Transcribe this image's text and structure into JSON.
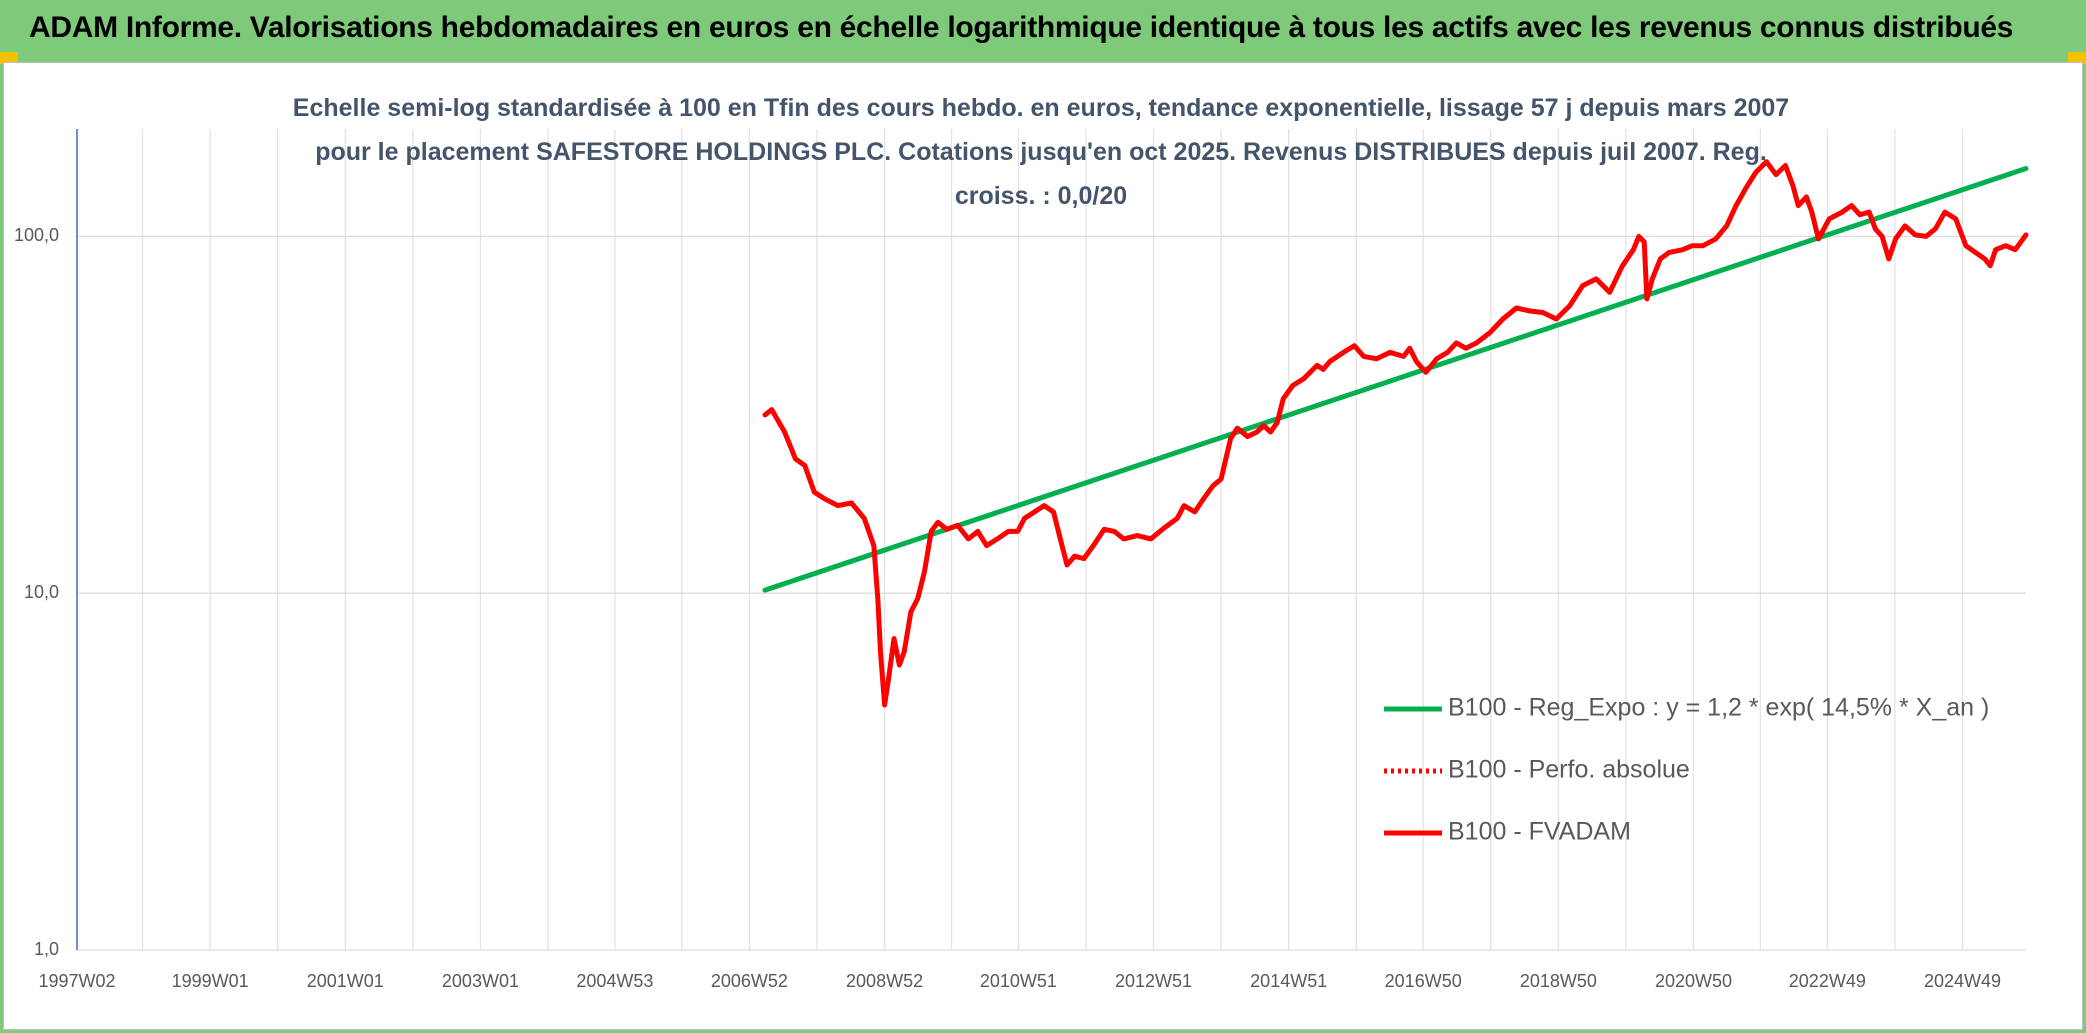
{
  "header": {
    "title": "ADAM Informe. Valorisations hebdomadaires en euros en échelle logarithmique identique à tous les actifs avec les revenus connus distribués"
  },
  "chart_data": {
    "type": "line",
    "title": "Echelle semi-log standardisée à 100 en Tfin des cours hebdo. en euros, tendance exponentielle, lissage 57 j depuis mars 2007 pour le placement SAFESTORE HOLDINGS PLC. Cotations jusqu'en oct 2025. Revenus DISTRIBUES depuis juil 2007. Reg. croiss. : 0,0/20",
    "ylog": true,
    "ylim": [
      1,
      200
    ],
    "yticks": [
      {
        "value": 1,
        "label": "1,0"
      },
      {
        "value": 10,
        "label": "10,0"
      },
      {
        "value": 100,
        "label": "100,0"
      }
    ],
    "xlim": [
      1997.03,
      2025.87
    ],
    "xticks": [
      {
        "value": 1997.03,
        "label": "1997W02"
      },
      {
        "value": 1999.0,
        "label": "1999W01"
      },
      {
        "value": 2001.0,
        "label": "2001W01"
      },
      {
        "value": 2003.0,
        "label": "2003W01"
      },
      {
        "value": 2004.99,
        "label": "2004W53"
      },
      {
        "value": 2006.98,
        "label": "2006W52"
      },
      {
        "value": 2008.98,
        "label": "2008W52"
      },
      {
        "value": 2010.96,
        "label": "2010W51"
      },
      {
        "value": 2012.96,
        "label": "2012W51"
      },
      {
        "value": 2014.96,
        "label": "2014W51"
      },
      {
        "value": 2016.95,
        "label": "2016W50"
      },
      {
        "value": 2018.95,
        "label": "2018W50"
      },
      {
        "value": 2020.95,
        "label": "2020W50"
      },
      {
        "value": 2022.93,
        "label": "2022W49"
      },
      {
        "value": 2024.93,
        "label": "2024W49"
      }
    ],
    "xminorticks": [
      1998.0,
      2000.0,
      2002.0,
      2004.0,
      2005.98,
      2007.98,
      2009.97,
      2011.96,
      2013.96,
      2015.96,
      2017.95,
      2019.95,
      2021.94,
      2023.93
    ],
    "grid": true,
    "legend": "right",
    "series": [
      {
        "name": "B100 - Reg_Expo : y = 1,2 * exp( 14,5% *  X_an )",
        "color": "#00b050",
        "style": "solid",
        "x": [
          2007.21,
          2025.87
        ],
        "values": [
          10.2,
          155
        ]
      },
      {
        "name": "B100 - Perfo. absolue",
        "color": "#ff0000",
        "style": "dotted",
        "x": [],
        "values": []
      },
      {
        "name": "B100 - FVADAM",
        "color": "#ff0000",
        "style": "solid",
        "x": [
          2007.21,
          2007.31,
          2007.5,
          2007.66,
          2007.8,
          2007.94,
          2008.09,
          2008.29,
          2008.49,
          2008.68,
          2008.82,
          2008.88,
          2008.92,
          2008.98,
          2009.04,
          2009.12,
          2009.2,
          2009.27,
          2009.37,
          2009.47,
          2009.57,
          2009.67,
          2009.77,
          2009.9,
          2010.06,
          2010.22,
          2010.36,
          2010.49,
          2010.65,
          2010.81,
          2010.95,
          2011.05,
          2011.2,
          2011.34,
          2011.48,
          2011.58,
          2011.68,
          2011.79,
          2011.93,
          2012.07,
          2012.23,
          2012.38,
          2012.52,
          2012.72,
          2012.92,
          2013.11,
          2013.31,
          2013.41,
          2013.57,
          2013.7,
          2013.84,
          2013.96,
          2014.1,
          2014.2,
          2014.35,
          2014.49,
          2014.59,
          2014.69,
          2014.79,
          2014.88,
          2015.02,
          2015.18,
          2015.38,
          2015.47,
          2015.57,
          2015.77,
          2015.93,
          2016.07,
          2016.26,
          2016.46,
          2016.66,
          2016.75,
          2016.85,
          2016.99,
          2017.15,
          2017.31,
          2017.44,
          2017.58,
          2017.74,
          2017.94,
          2018.13,
          2018.33,
          2018.53,
          2018.72,
          2018.92,
          2019.12,
          2019.31,
          2019.51,
          2019.71,
          2019.9,
          2020.06,
          2020.14,
          2020.22,
          2020.26,
          2020.34,
          2020.46,
          2020.59,
          2020.79,
          2020.93,
          2021.09,
          2021.28,
          2021.44,
          2021.58,
          2021.72,
          2021.87,
          2022.03,
          2022.17,
          2022.31,
          2022.42,
          2022.5,
          2022.62,
          2022.7,
          2022.8,
          2022.96,
          2023.15,
          2023.29,
          2023.41,
          2023.55,
          2023.64,
          2023.74,
          2023.84,
          2023.94,
          2024.08,
          2024.23,
          2024.39,
          2024.53,
          2024.67,
          2024.83,
          2024.98,
          2025.12,
          2025.26,
          2025.34,
          2025.42,
          2025.57,
          2025.71,
          2025.87
        ],
        "values": [
          31.6,
          32.7,
          28.3,
          23.8,
          22.8,
          19.2,
          18.4,
          17.6,
          17.9,
          16.2,
          13.6,
          9.66,
          6.85,
          4.86,
          5.77,
          7.46,
          6.29,
          6.85,
          8.87,
          9.66,
          11.5,
          14.9,
          15.8,
          15.1,
          15.5,
          14.2,
          14.9,
          13.6,
          14.2,
          14.9,
          14.9,
          16.2,
          16.9,
          17.6,
          16.9,
          14.2,
          12.0,
          12.7,
          12.5,
          13.6,
          15.1,
          14.9,
          14.2,
          14.5,
          14.2,
          15.2,
          16.2,
          17.6,
          16.9,
          18.4,
          20.0,
          20.9,
          27.1,
          29.0,
          27.5,
          28.3,
          29.5,
          28.3,
          30.1,
          35.1,
          38.2,
          39.9,
          43.5,
          42.4,
          44.6,
          47.3,
          49.4,
          46.1,
          45.4,
          47.3,
          46.1,
          48.6,
          44.6,
          41.6,
          45.4,
          47.3,
          50.3,
          48.6,
          50.3,
          53.8,
          58.7,
          63.0,
          61.8,
          61.2,
          58.7,
          64.0,
          72.8,
          76.0,
          69.7,
          82.8,
          91.8,
          100,
          96.6,
          66.8,
          76.0,
          86.5,
          90.2,
          91.8,
          94.2,
          94.2,
          98.4,
          107,
          122,
          136,
          151,
          162,
          149,
          158,
          139,
          122,
          129,
          117,
          98.4,
          112,
          117,
          122,
          115,
          117,
          105,
          100,
          86.5,
          98.4,
          107,
          101,
          100,
          105,
          117,
          112,
          94.2,
          90.2,
          86.5,
          82.8,
          91.8,
          94.2,
          91.8,
          101
        ]
      }
    ]
  }
}
